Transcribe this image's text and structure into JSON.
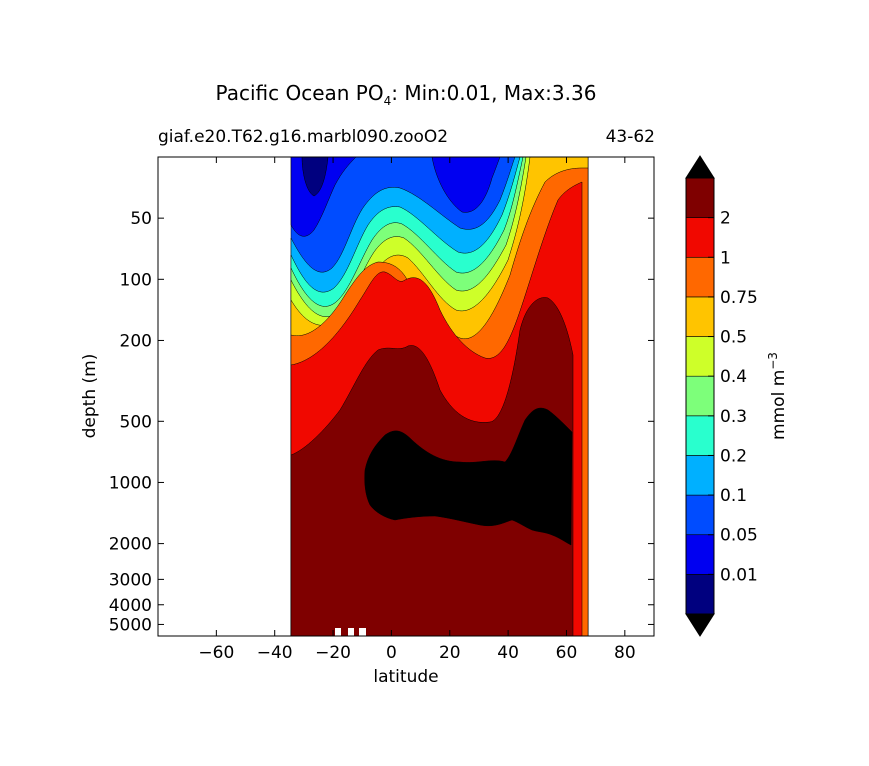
{
  "chart_data": {
    "type": "heatmap",
    "title": {
      "main": "Pacific Ocean PO",
      "sub": "4",
      "stats": ": Min:0.01, Max:3.36"
    },
    "subtitle_left": "giaf.e20.T62.g16.marbl090.zooO2",
    "subtitle_right": "43-62",
    "xlabel": "latitude",
    "ylabel": "depth (m)",
    "xlim": [
      -80,
      90
    ],
    "ylim": [
      5700,
      25
    ],
    "y_scale": "log",
    "x_ticks": [
      "−60",
      "−40",
      "−20",
      "0",
      "20",
      "40",
      "60",
      "80"
    ],
    "x_tick_values": [
      -60,
      -40,
      -20,
      0,
      20,
      40,
      60,
      80
    ],
    "y_ticks": [
      "50",
      "100",
      "200",
      "500",
      "1000",
      "2000",
      "3000",
      "4000",
      "5000"
    ],
    "y_tick_values": [
      50,
      100,
      200,
      500,
      1000,
      2000,
      3000,
      4000,
      5000
    ],
    "colorbar": {
      "label": "mmol m",
      "label_exp": "−3",
      "levels": [
        "0.01",
        "0.05",
        "0.1",
        "0.2",
        "0.3",
        "0.4",
        "0.5",
        "0.75",
        "1",
        "2"
      ],
      "colors": [
        "#00007f",
        "#0000f1",
        "#004cff",
        "#00b0ff",
        "#29ffce",
        "#7dff7a",
        "#ceff29",
        "#ffc400",
        "#ff6800",
        "#f10800",
        "#7f0000"
      ],
      "extend": "both",
      "over_color": "#000000",
      "under_color": "#000000"
    },
    "data_extent": {
      "lat_min": -34,
      "lat_max_surface": 67,
      "lat_max_deep": 53
    }
  }
}
